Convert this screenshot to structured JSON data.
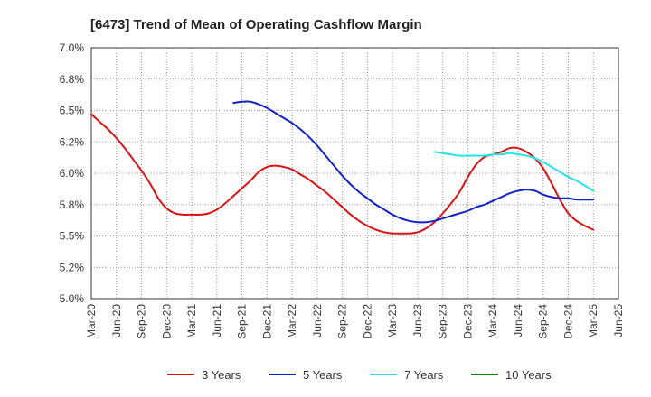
{
  "chart_data": {
    "type": "line",
    "title": "[6473]  Trend of Mean of Operating Cashflow Margin",
    "xlabel": "",
    "ylabel": "",
    "x_tick_labels": [
      "Mar-20",
      "Jun-20",
      "Sep-20",
      "Dec-20",
      "Mar-21",
      "Jun-21",
      "Sep-21",
      "Dec-21",
      "Mar-22",
      "Jun-22",
      "Sep-22",
      "Dec-22",
      "Mar-23",
      "Jun-23",
      "Sep-23",
      "Dec-23",
      "Mar-24",
      "Jun-24",
      "Sep-24",
      "Dec-24",
      "Mar-25",
      "Jun-25"
    ],
    "y_ticks": [
      5.0,
      5.25,
      5.5,
      5.75,
      6.0,
      6.25,
      6.5,
      6.75,
      7.0
    ],
    "y_tick_labels": [
      "5.0%",
      "5.2%",
      "5.5%",
      "5.8%",
      "6.0%",
      "6.2%",
      "6.5%",
      "6.8%",
      "7.0%"
    ],
    "ylim": [
      5.0,
      7.0
    ],
    "grid": true,
    "legend_position": "bottom",
    "series": [
      {
        "name": "3 Years",
        "color": "#dd1111",
        "x": [
          "Mar-20",
          "Apr-20",
          "May-20",
          "Jun-20",
          "Jul-20",
          "Aug-20",
          "Sep-20",
          "Oct-20",
          "Nov-20",
          "Dec-20",
          "Jan-21",
          "Feb-21",
          "Mar-21",
          "Apr-21",
          "May-21",
          "Jun-21",
          "Jul-21",
          "Aug-21",
          "Sep-21",
          "Oct-21",
          "Nov-21",
          "Dec-21",
          "Jan-22",
          "Feb-22",
          "Mar-22",
          "Apr-22",
          "May-22",
          "Jun-22",
          "Jul-22",
          "Aug-22",
          "Sep-22",
          "Oct-22",
          "Nov-22",
          "Dec-22",
          "Jan-23",
          "Feb-23",
          "Mar-23",
          "Apr-23",
          "May-23",
          "Jun-23",
          "Jul-23",
          "Aug-23",
          "Sep-23",
          "Oct-23",
          "Nov-23",
          "Dec-23",
          "Jan-24",
          "Feb-24",
          "Mar-24",
          "Apr-24",
          "May-24",
          "Jun-24",
          "Jul-24",
          "Aug-24",
          "Sep-24",
          "Oct-24",
          "Nov-24",
          "Dec-24",
          "Jan-25",
          "Feb-25",
          "Mar-25"
        ],
        "values": [
          6.47,
          6.41,
          6.35,
          6.28,
          6.2,
          6.11,
          6.02,
          5.92,
          5.8,
          5.72,
          5.68,
          5.67,
          5.67,
          5.67,
          5.68,
          5.71,
          5.76,
          5.82,
          5.88,
          5.94,
          6.01,
          6.05,
          6.06,
          6.05,
          6.03,
          5.99,
          5.95,
          5.9,
          5.85,
          5.79,
          5.73,
          5.67,
          5.62,
          5.58,
          5.55,
          5.53,
          5.52,
          5.52,
          5.52,
          5.53,
          5.56,
          5.61,
          5.68,
          5.76,
          5.85,
          5.97,
          6.07,
          6.13,
          6.15,
          6.17,
          6.2,
          6.2,
          6.17,
          6.12,
          6.04,
          5.92,
          5.79,
          5.68,
          5.62,
          5.58,
          5.55
        ]
      },
      {
        "name": "5 Years",
        "color": "#1122cc",
        "x": [
          "Aug-21",
          "Sep-21",
          "Oct-21",
          "Nov-21",
          "Dec-21",
          "Jan-22",
          "Feb-22",
          "Mar-22",
          "Apr-22",
          "May-22",
          "Jun-22",
          "Jul-22",
          "Aug-22",
          "Sep-22",
          "Oct-22",
          "Nov-22",
          "Dec-22",
          "Jan-23",
          "Feb-23",
          "Mar-23",
          "Apr-23",
          "May-23",
          "Jun-23",
          "Jul-23",
          "Aug-23",
          "Sep-23",
          "Oct-23",
          "Nov-23",
          "Dec-23",
          "Jan-24",
          "Feb-24",
          "Mar-24",
          "Apr-24",
          "May-24",
          "Jun-24",
          "Jul-24",
          "Aug-24",
          "Sep-24",
          "Oct-24",
          "Nov-24",
          "Dec-24",
          "Jan-25",
          "Feb-25",
          "Mar-25"
        ],
        "values": [
          6.56,
          6.57,
          6.57,
          6.55,
          6.52,
          6.48,
          6.44,
          6.4,
          6.35,
          6.29,
          6.22,
          6.14,
          6.06,
          5.98,
          5.91,
          5.85,
          5.8,
          5.75,
          5.71,
          5.67,
          5.64,
          5.62,
          5.61,
          5.61,
          5.62,
          5.64,
          5.66,
          5.68,
          5.7,
          5.73,
          5.75,
          5.78,
          5.81,
          5.84,
          5.86,
          5.87,
          5.86,
          5.83,
          5.81,
          5.8,
          5.8,
          5.79,
          5.79,
          5.79
        ]
      },
      {
        "name": "7 Years",
        "color": "#22e5e5",
        "x": [
          "Aug-23",
          "Sep-23",
          "Oct-23",
          "Nov-23",
          "Dec-23",
          "Jan-24",
          "Feb-24",
          "Mar-24",
          "Apr-24",
          "May-24",
          "Jun-24",
          "Jul-24",
          "Aug-24",
          "Sep-24",
          "Oct-24",
          "Nov-24",
          "Dec-24",
          "Jan-25",
          "Feb-25",
          "Mar-25"
        ],
        "values": [
          6.17,
          6.16,
          6.15,
          6.14,
          6.14,
          6.14,
          6.14,
          6.15,
          6.15,
          6.16,
          6.15,
          6.14,
          6.12,
          6.09,
          6.05,
          6.01,
          5.97,
          5.94,
          5.9,
          5.86
        ]
      },
      {
        "name": "10 Years",
        "color": "#118811",
        "x": [],
        "values": []
      }
    ]
  }
}
